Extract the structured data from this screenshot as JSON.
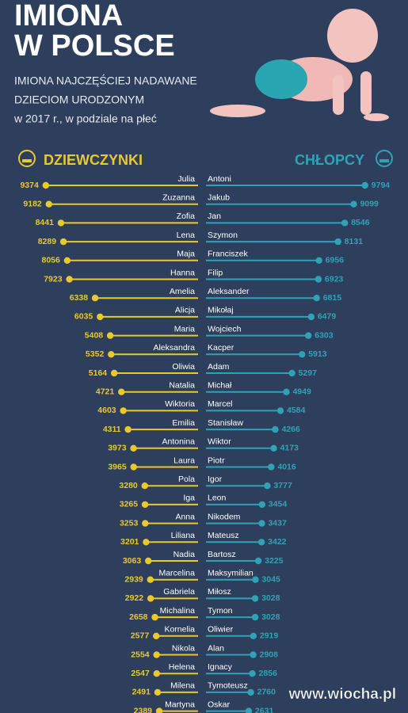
{
  "chart_data": {
    "type": "lollipop",
    "title": [
      "IMIONA",
      "W POLSCE"
    ],
    "subtitle": [
      "IMIONA NAJCZĘŚCIEJ NADAWANE",
      "DZIECIOM URODZONYM",
      "w 2017 r., w podziale na płeć"
    ],
    "xlim": [
      0,
      10000
    ],
    "series": [
      {
        "name": "DZIEWCZYNKI",
        "color": "#e9c92c",
        "side": "left",
        "categories": [
          "Julia",
          "Zuzanna",
          "Zofia",
          "Lena",
          "Maja",
          "Hanna",
          "Amelia",
          "Alicja",
          "Maria",
          "Aleksandra",
          "Oliwia",
          "Natalia",
          "Wiktoria",
          "Emilia",
          "Antonina",
          "Laura",
          "Pola",
          "Iga",
          "Anna",
          "Liliana",
          "Nadia",
          "Marcelina",
          "Gabriela",
          "Michalina",
          "Kornelia",
          "Nikola",
          "Helena",
          "Milena",
          "Martyna"
        ],
        "values": [
          9374,
          9182,
          8441,
          8289,
          8056,
          7923,
          6338,
          6035,
          5408,
          5352,
          5164,
          4721,
          4603,
          4311,
          3973,
          3965,
          3280,
          3265,
          3253,
          3201,
          3063,
          2939,
          2922,
          2658,
          2577,
          2554,
          2547,
          2491,
          2389
        ]
      },
      {
        "name": "CHŁOPCY",
        "color": "#2fa3b5",
        "side": "right",
        "categories": [
          "Antoni",
          "Jakub",
          "Jan",
          "Szymon",
          "Franciszek",
          "Filip",
          "Aleksander",
          "Mikołaj",
          "Wojciech",
          "Kacper",
          "Adam",
          "Michał",
          "Marcel",
          "Stanisław",
          "Wiktor",
          "Piotr",
          "Igor",
          "Leon",
          "Nikodem",
          "Mateusz",
          "Bartosz",
          "Maksymilian",
          "Miłosz",
          "Tymon",
          "Oliwier",
          "Alan",
          "Ignacy",
          "Tymoteusz",
          "Oskar"
        ],
        "values": [
          9794,
          9099,
          8546,
          8131,
          6956,
          6923,
          6815,
          6479,
          6303,
          5913,
          5297,
          4949,
          4584,
          4266,
          4173,
          4016,
          3777,
          3454,
          3437,
          3422,
          3225,
          3045,
          3028,
          3028,
          2919,
          2908,
          2856,
          2760,
          2631
        ]
      }
    ],
    "watermark": "www.wiocha.pl"
  }
}
